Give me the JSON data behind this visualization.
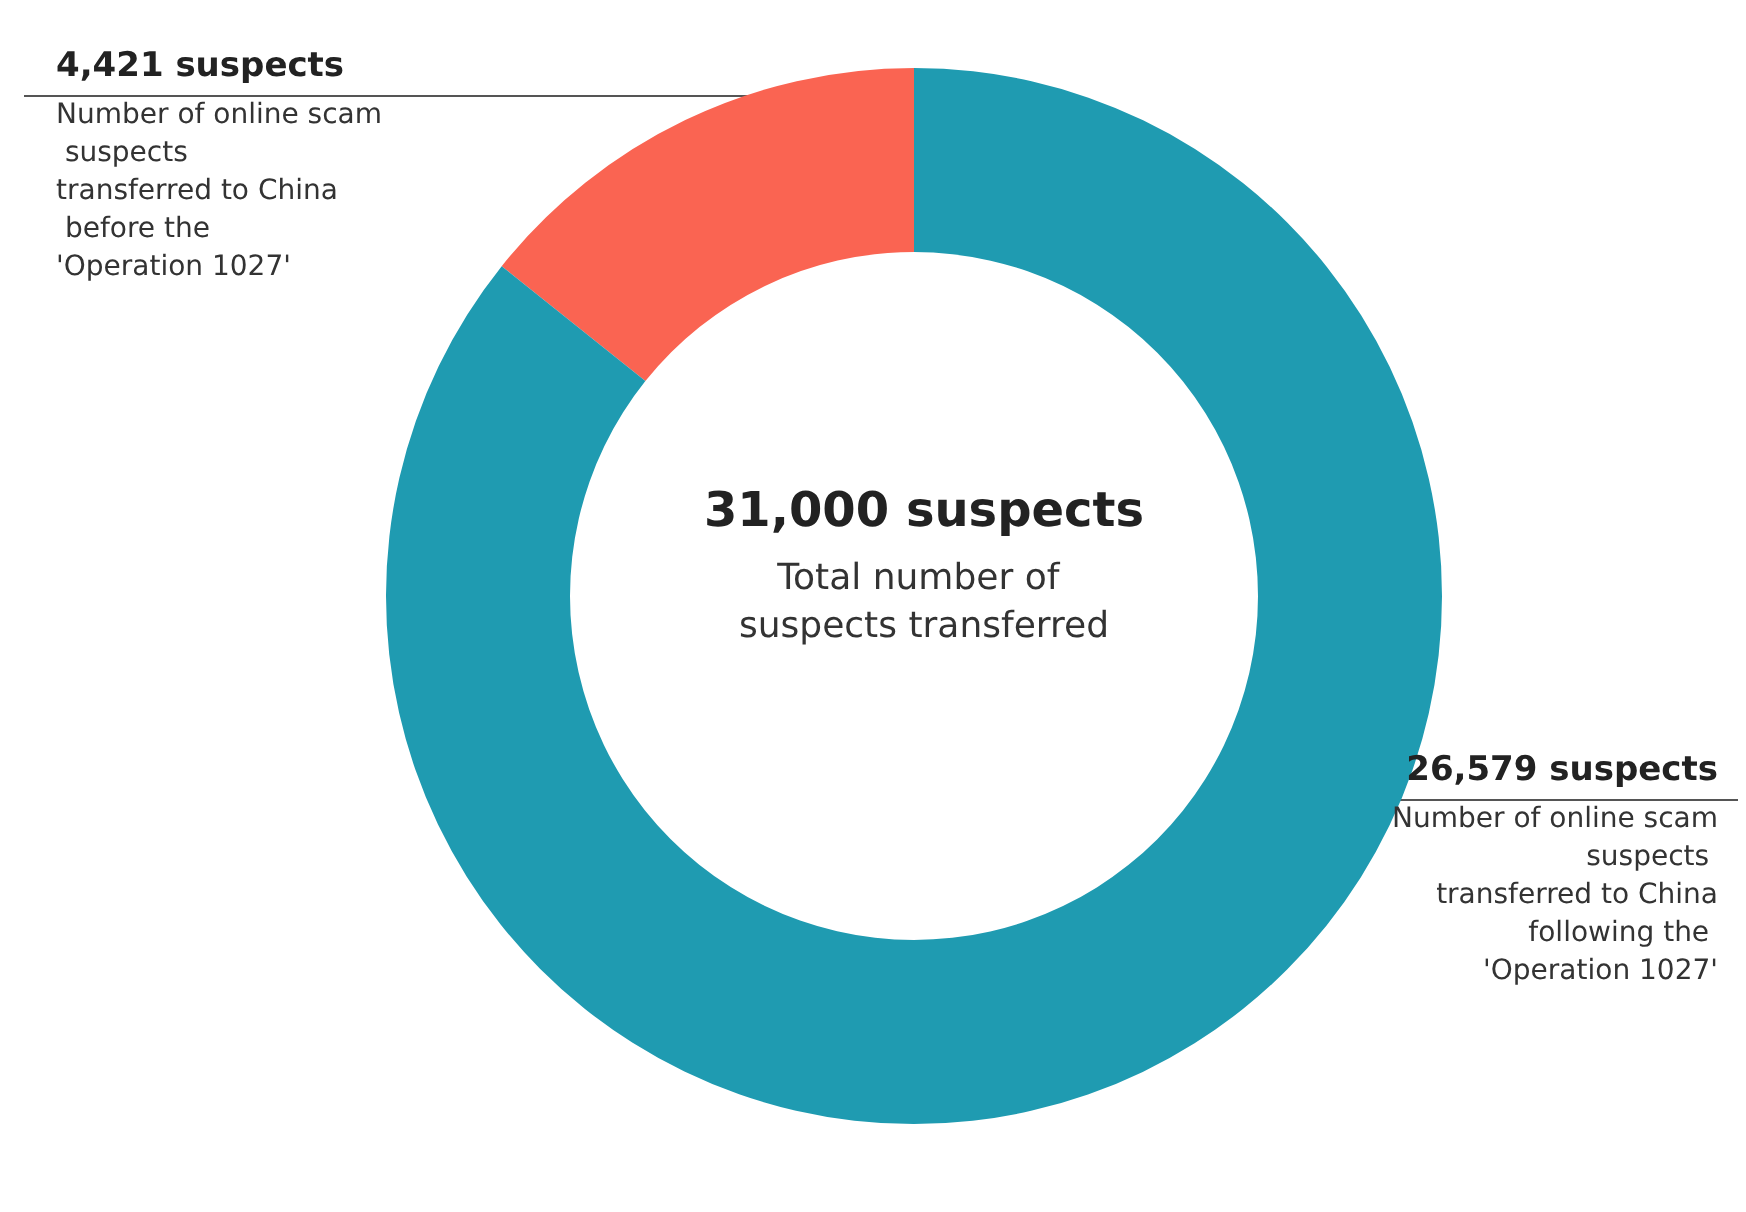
{
  "chart_data": {
    "type": "donut",
    "title": "31,000 suspects",
    "subtitle": "Total number of suspects transferred",
    "categories": [
      "Number of online scam suspects transferred to China before the 'Operation 1027'",
      "Number of online scam suspects transferred to China following the 'Operation 1027'"
    ],
    "values": [
      4421,
      26579
    ],
    "colors": [
      "#fa6452",
      "#1f9bb1"
    ],
    "value_labels": [
      "4,421 suspects",
      "26,579 suspects"
    ],
    "legend": false
  }
}
